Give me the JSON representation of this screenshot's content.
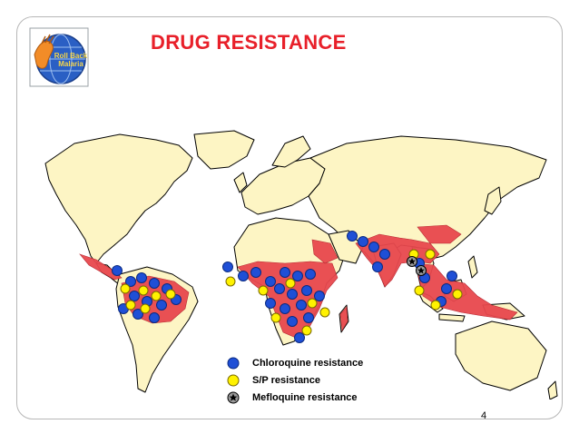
{
  "slide": {
    "title": "DRUG RESISTANCE",
    "page_number": "4",
    "logo": {
      "icon": "roll-back-malaria-globe-icon",
      "text": "Roll Back Malaria"
    }
  },
  "colors": {
    "title": "#e8202a",
    "land": "#fdf5c4",
    "malaria_zone": "#e8484e",
    "chloroquine": "#1f4fd6",
    "sp": "#fff200",
    "mefloquine": "#9a9a9a"
  },
  "legend": [
    {
      "label": "Chloroquine resistance",
      "icon": "blue-circle-icon"
    },
    {
      "label": "S/P resistance",
      "icon": "yellow-circle-icon"
    },
    {
      "label": "Mefloquine resistance",
      "icon": "star-circle-icon"
    }
  ]
}
